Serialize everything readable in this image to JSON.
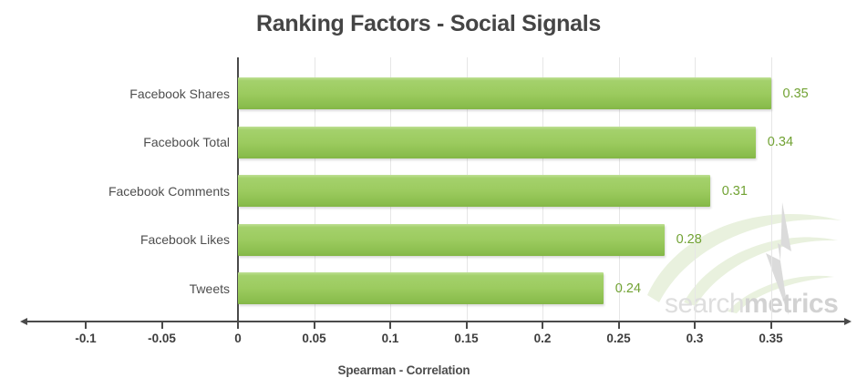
{
  "title": "Ranking Factors - Social Signals",
  "watermark": {
    "part1": "search",
    "part2": "metrics"
  },
  "chart_data": {
    "type": "bar",
    "orientation": "horizontal",
    "title": "Ranking Factors - Social Signals",
    "xlabel": "Spearman - Correlation",
    "ylabel": "",
    "categories": [
      "Facebook Shares",
      "Facebook Total",
      "Facebook Comments",
      "Facebook Likes",
      "Tweets"
    ],
    "values": [
      0.35,
      0.34,
      0.31,
      0.28,
      0.24
    ],
    "value_labels": [
      "0.35",
      "0.34",
      "0.31",
      "0.28",
      "0.24"
    ],
    "xlim": [
      -0.14,
      0.39
    ],
    "xticks": [
      -0.1,
      -0.05,
      0,
      0.05,
      0.1,
      0.15,
      0.2,
      0.25,
      0.3,
      0.35
    ],
    "xtick_labels": [
      "-0.1",
      "-0.05",
      "0",
      "0.05",
      "0.1",
      "0.15",
      "0.2",
      "0.25",
      "0.3",
      "0.35"
    ],
    "grid": "vertical gridlines at positive ticks only",
    "legend": false
  },
  "colors": {
    "bar_mid": "#9ccb5f",
    "bar_light": "#bfe095",
    "bar_dark": "#83b646",
    "value_label": "#71a233",
    "axis": "#4a4a4a",
    "gridline": "#e6e6e6",
    "title_text": "#454545",
    "category_text": "#4e4e4e",
    "tick_text": "#3e3e3e",
    "watermark_gray": "#dedede",
    "watermark_green": "#e9f1de"
  }
}
